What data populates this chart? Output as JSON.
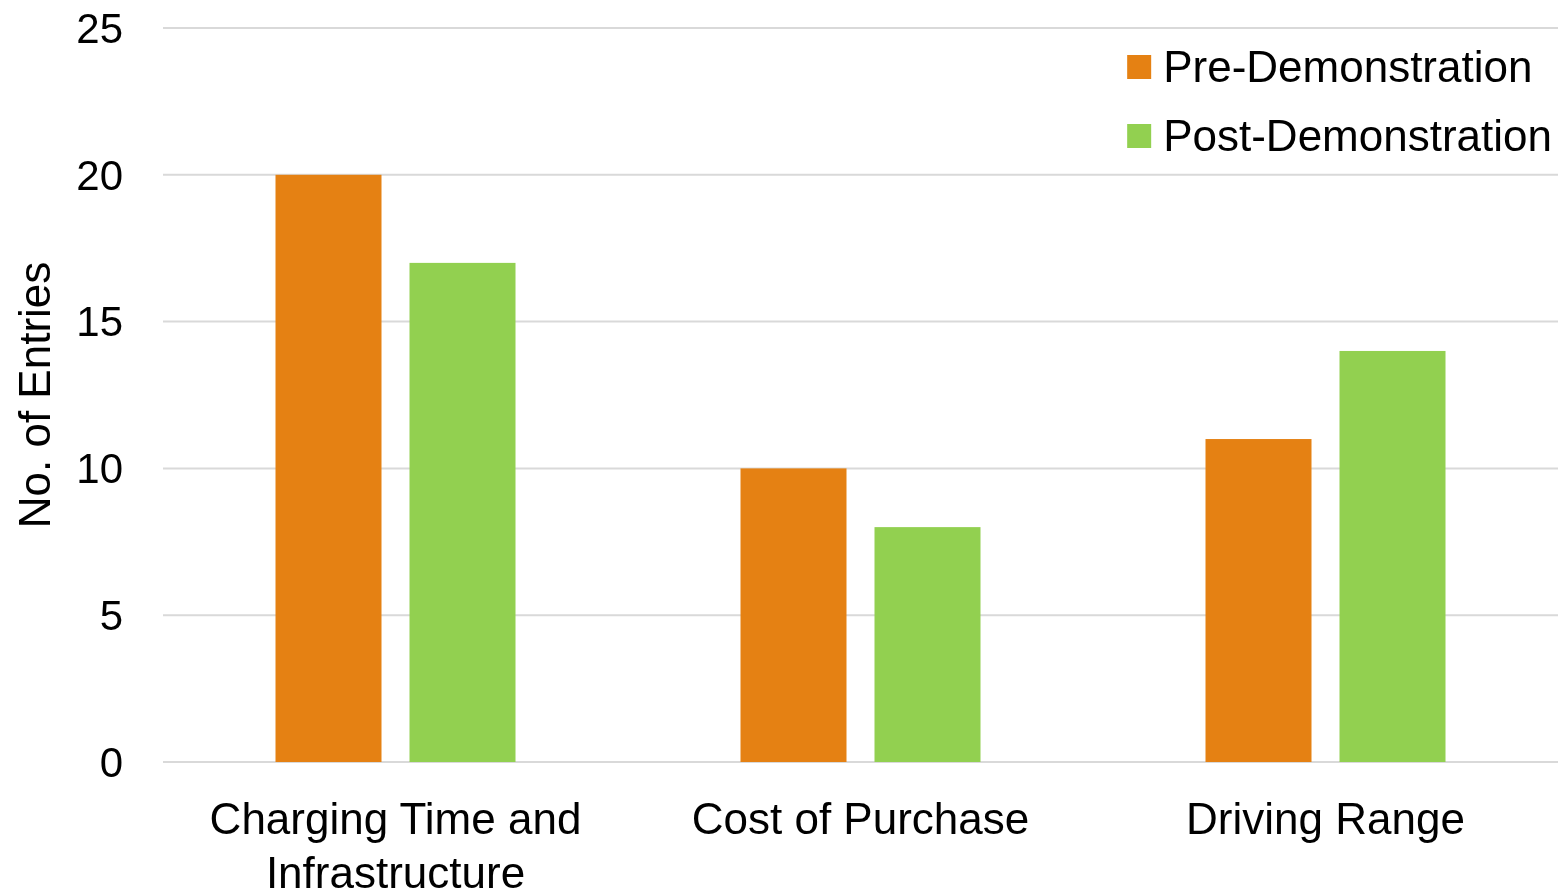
{
  "chart_data": {
    "type": "bar",
    "ylabel": "No. of Entries",
    "categories": [
      "Charging Time and Infrastructure",
      "Cost of Purchase",
      "Driving Range"
    ],
    "series": [
      {
        "name": "Pre-Demonstration",
        "color": "#e58113",
        "values": [
          20,
          10,
          11
        ]
      },
      {
        "name": "Post-Demonstration",
        "color": "#92d050",
        "values": [
          17,
          8,
          14
        ]
      }
    ],
    "ylim": [
      0,
      25
    ],
    "yticks": [
      0,
      5,
      10,
      15,
      20,
      25
    ],
    "grid": "y",
    "legend": "top right"
  }
}
